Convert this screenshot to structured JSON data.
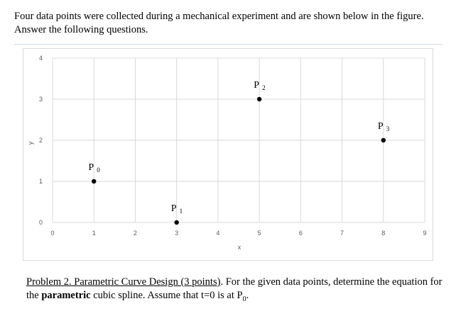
{
  "intro_text": "Four data points were collected during a mechanical experiment and are shown below in the figure.  Answer the following questions.",
  "problem": {
    "title": "Problem 2.  Parametric Curve Design (3 points)",
    "text_before_bold": ".  For the given data points, determine the equation for the ",
    "bold_word": "parametric",
    "text_after_bold": " cubic spline.  Assume that t=0 is at P",
    "subscript": "0",
    "period": "."
  },
  "chart_data": {
    "type": "scatter",
    "xlabel": "x",
    "ylabel": "y",
    "xlim": [
      0,
      9
    ],
    "ylim": [
      0,
      4
    ],
    "xticks": [
      0,
      1,
      2,
      3,
      4,
      5,
      6,
      7,
      8,
      9
    ],
    "yticks": [
      0,
      1,
      2,
      3,
      4
    ],
    "grid": true,
    "legend": "none",
    "marker_color": "#000000",
    "grid_color": "#d9d9d9",
    "points": [
      {
        "label": "P",
        "sub": "0",
        "x": 1,
        "y": 1
      },
      {
        "label": "P",
        "sub": "1",
        "x": 3,
        "y": 0
      },
      {
        "label": "P",
        "sub": "2",
        "x": 5,
        "y": 3
      },
      {
        "label": "P",
        "sub": "3",
        "x": 8,
        "y": 2
      }
    ]
  }
}
